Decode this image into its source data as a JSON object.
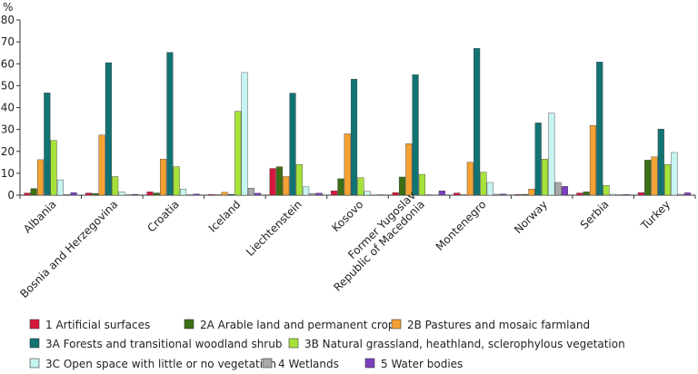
{
  "chart_data": {
    "type": "bar",
    "title": "",
    "xlabel": "",
    "ylabel": "%",
    "ylim": [
      0,
      80
    ],
    "yticks": [
      0,
      10,
      20,
      30,
      40,
      50,
      60,
      70,
      80
    ],
    "grid": false,
    "legend_position": "bottom",
    "categories": [
      "Albania",
      "Bosnia and Herzegovina",
      "Croatia",
      "Iceland",
      "Liechtenstein",
      "Kosovo",
      "Former Yugoslav\nRepublic of Macedonia",
      "Montenegro",
      "Norway",
      "Serbia",
      "Turkey"
    ],
    "series": [
      {
        "name": "1 Artificial surfaces",
        "color": "#d6163c",
        "values": [
          1.0,
          1.0,
          1.5,
          0.3,
          12.2,
          2.0,
          1.2,
          1.0,
          0.3,
          1.0,
          1.2
        ]
      },
      {
        "name": "2A Arable land and permanent crops",
        "color": "#3b6f12",
        "values": [
          3.0,
          0.8,
          1.0,
          0.2,
          13.0,
          7.5,
          8.3,
          0.2,
          0.4,
          1.5,
          16.0
        ]
      },
      {
        "name": "2B Pastures and mosaic farmland",
        "color": "#f4a233",
        "values": [
          16.2,
          27.5,
          16.5,
          1.3,
          8.5,
          28.0,
          23.5,
          15.0,
          2.8,
          31.8,
          17.5
        ]
      },
      {
        "name": "3A Forests and transitional woodland shrub",
        "color": "#127373",
        "values": [
          46.7,
          60.5,
          65.2,
          0.4,
          46.6,
          53.0,
          55.0,
          67.0,
          33.0,
          60.8,
          30.2
        ]
      },
      {
        "name": "3B Natural grassland, heathland, sclerophylous vegetation",
        "color": "#a6e23a",
        "values": [
          25.0,
          8.5,
          13.0,
          38.3,
          14.0,
          8.0,
          9.5,
          10.5,
          16.5,
          4.5,
          14.0
        ]
      },
      {
        "name": "3C Open space with little or no vegetation",
        "color": "#c6f4f0",
        "values": [
          7.0,
          1.5,
          2.8,
          56.0,
          3.8,
          1.8,
          0.2,
          5.8,
          37.5,
          0.4,
          19.5
        ]
      },
      {
        "name": "4 Wetlands",
        "color": "#a8a8a8",
        "values": [
          0.3,
          0.2,
          0.2,
          3.2,
          0.8,
          0.1,
          0.1,
          0.4,
          5.8,
          0.2,
          0.4
        ]
      },
      {
        "name": "5 Water bodies",
        "color": "#7a3fbf",
        "values": [
          1.2,
          0.4,
          0.5,
          0.9,
          0.9,
          0.2,
          2.0,
          0.5,
          4.0,
          0.3,
          1.1
        ]
      }
    ]
  }
}
